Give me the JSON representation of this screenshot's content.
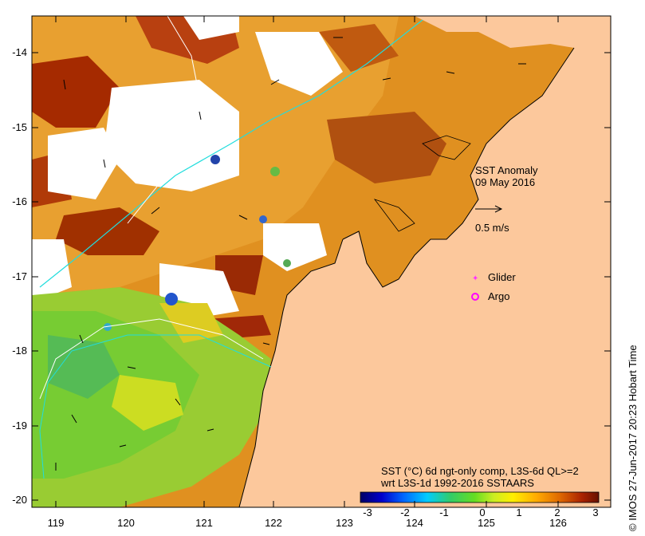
{
  "map": {
    "title": "SST Anomaly",
    "date": "09 May 2016",
    "vector_scale_label": "0.5 m/s",
    "legend": {
      "glider_label": "Glider",
      "argo_label": "Argo",
      "glider_color": "#ff33ff",
      "argo_color": "#ff00ff"
    },
    "x_ticks": [
      "119",
      "120",
      "121",
      "122",
      "123",
      "124",
      "125",
      "126"
    ],
    "y_ticks": [
      "-14",
      "-15",
      "-16",
      "-17",
      "-18",
      "-19",
      "-20"
    ],
    "colorbar": {
      "title_line1": "SST (°C) 6d ngt-only comp, L3S-6d QL>=2",
      "title_line2": "wrt L3S-1d 1992-2016 SSTAARS",
      "ticks": [
        "-3",
        "-2",
        "-1",
        "0",
        "1",
        "2",
        "3"
      ],
      "range": [
        -3,
        3
      ],
      "colors": [
        "#000066",
        "#0000cc",
        "#0066ff",
        "#00ccff",
        "#33cc66",
        "#66dd22",
        "#ccee22",
        "#ffee00",
        "#ffaa00",
        "#dd6600",
        "#aa2200",
        "#661100"
      ]
    },
    "credit": "© IMOS 27-Jun-2017 20:23 Hobart Time",
    "colors": {
      "land": "#fcc89c",
      "no_data": "#ffffff",
      "isobath_200m": "#22dddd",
      "isobath_shelf": "#ffffff"
    }
  }
}
